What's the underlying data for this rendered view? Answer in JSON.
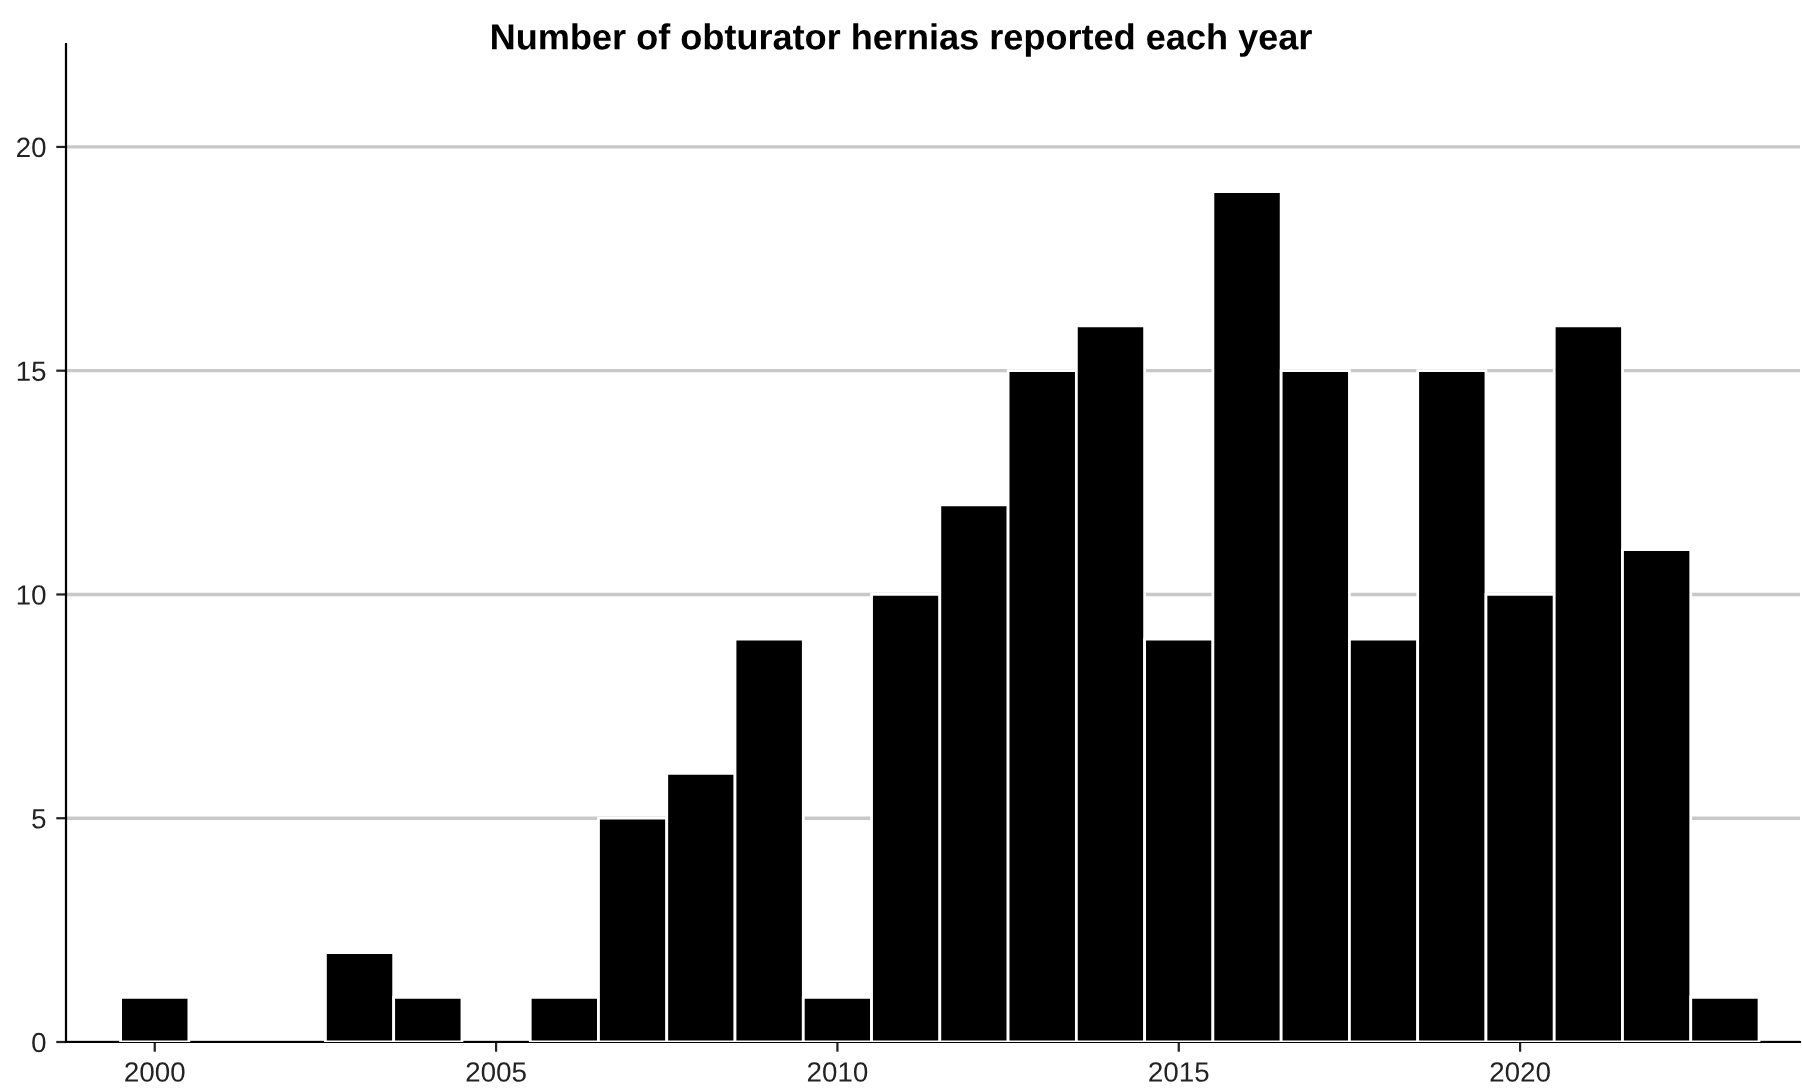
{
  "chart_data": {
    "type": "histogram",
    "title": "Number of obturator hernias reported each year",
    "bins": [
      1999.5,
      2000.5,
      2001.5,
      2002.5,
      2003.5,
      2004.5,
      2005.5,
      2006.5,
      2007.5,
      2008.5,
      2009.5,
      2010.5,
      2011.5,
      2012.5,
      2013.5,
      2014.5,
      2015.5,
      2016.5,
      2017.5,
      2018.5,
      2019.5,
      2020.5,
      2021.5,
      2022.5,
      2023.5
    ],
    "values": [
      1,
      0,
      0,
      2,
      1,
      0,
      1,
      5,
      6,
      9,
      1,
      10,
      12,
      15,
      16,
      9,
      19,
      15,
      9,
      15,
      10,
      16,
      11,
      1
    ],
    "color": "#000000",
    "xlim": [
      1998.7,
      2024.1
    ],
    "xticks": [
      2000,
      2005,
      2010,
      2015,
      2020
    ],
    "ylim": [
      0,
      22.3
    ],
    "yticks": [
      0,
      5,
      10,
      15,
      20
    ],
    "grid": "y"
  }
}
